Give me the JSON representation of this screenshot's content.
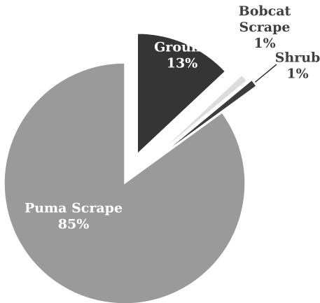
{
  "chart_data": {
    "type": "pie",
    "categories": [
      "Puma Scrape",
      "Ground",
      "Bobcat Scrape",
      "Shrub"
    ],
    "values": [
      85,
      13,
      1,
      1
    ],
    "value_labels": [
      "85%",
      "13%",
      "1%",
      "1%"
    ],
    "slice_colors": [
      "#9a9a9a",
      "#353535",
      "#dcdcdc",
      "#3c3c3c"
    ],
    "label_colors": [
      "#ffffff",
      "#ffffff",
      "#404040",
      "#404040"
    ],
    "exploded": true,
    "legend": "none"
  }
}
